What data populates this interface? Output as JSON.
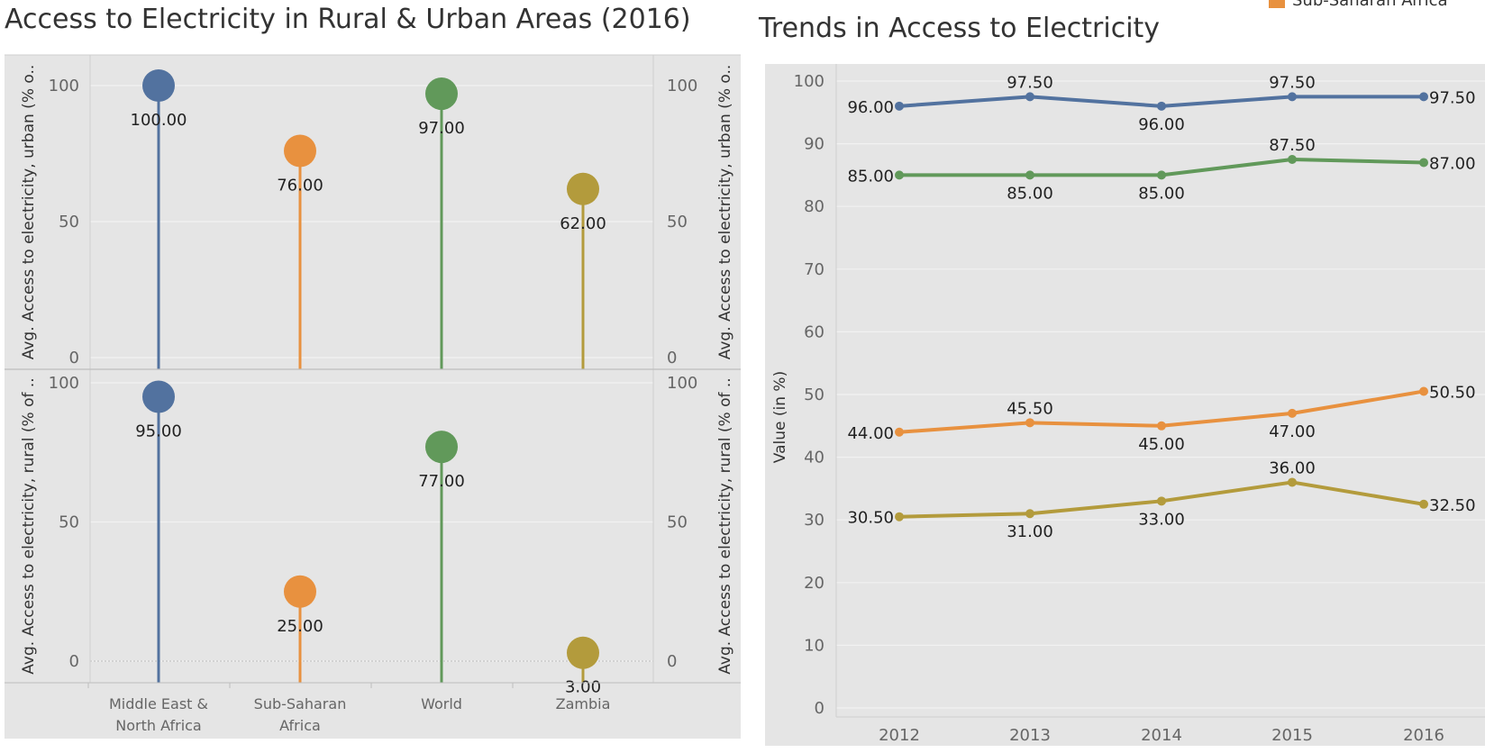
{
  "left_title": "Access to Electricity in Rural & Urban Areas (2016)",
  "right_title": "Trends in Access to Electricity",
  "legend": {
    "label": "Sub-Saharan Africa",
    "color": "#E8913F"
  },
  "colors": {
    "Middle East & North Africa": "#52729F",
    "Sub-Saharan Africa": "#E8913F",
    "World": "#61995A",
    "Zambia": "#B39B3C",
    "panel_bg": "#E5E5E5"
  },
  "chart_data": [
    {
      "type": "lollipop",
      "title": "Access to Electricity in Rural & Urban Areas (2016)",
      "categories": [
        [
          "Middle East &",
          "North Africa"
        ],
        [
          "Sub-Saharan",
          "Africa"
        ],
        [
          "World"
        ],
        [
          "Zambia"
        ]
      ],
      "category_keys": [
        "Middle East & North Africa",
        "Sub-Saharan Africa",
        "World",
        "Zambia"
      ],
      "panels": [
        {
          "ylabel": "Avg. Access to electricity, urban (% o..",
          "values": [
            100,
            76,
            97,
            62
          ],
          "labels": [
            "100.00",
            "76.00",
            "97.00",
            "62.00"
          ],
          "ylim": [
            0,
            100
          ],
          "ticks": [
            "0",
            "50",
            "100"
          ]
        },
        {
          "ylabel": "Avg. Access to electricity, rural (% of ..",
          "values": [
            95,
            25,
            77,
            3
          ],
          "labels": [
            "95.00",
            "25.00",
            "77.00",
            "3.00"
          ],
          "ylim": [
            0,
            100
          ],
          "ticks": [
            "0",
            "50",
            "100"
          ]
        }
      ]
    },
    {
      "type": "line",
      "title": "Trends in Access to Electricity",
      "x": [
        "2012",
        "2013",
        "2014",
        "2015",
        "2016"
      ],
      "ylabel": "Value (in %)",
      "ylim": [
        0,
        100
      ],
      "yticks": [
        "0",
        "10",
        "20",
        "30",
        "40",
        "50",
        "60",
        "70",
        "80",
        "90",
        "100"
      ],
      "series": [
        {
          "key": "Middle East & North Africa",
          "values": [
            96,
            97.5,
            96,
            97.5,
            97.5
          ],
          "labels": [
            "96.00",
            "97.50",
            "96.00",
            "97.50",
            "97.50"
          ]
        },
        {
          "key": "World",
          "values": [
            85,
            85,
            85,
            87.5,
            87
          ],
          "labels": [
            "85.00",
            "85.00",
            "85.00",
            "87.50",
            "87.00"
          ]
        },
        {
          "key": "Sub-Saharan Africa",
          "values": [
            44,
            45.5,
            45,
            47,
            50.5
          ],
          "labels": [
            "44.00",
            "45.50",
            "45.00",
            "47.00",
            "50.50"
          ]
        },
        {
          "key": "Zambia",
          "values": [
            30.5,
            31,
            33,
            36,
            32.5
          ],
          "labels": [
            "30.50",
            "31.00",
            "33.00",
            "36.00",
            "32.50"
          ]
        }
      ],
      "grid": true
    }
  ]
}
